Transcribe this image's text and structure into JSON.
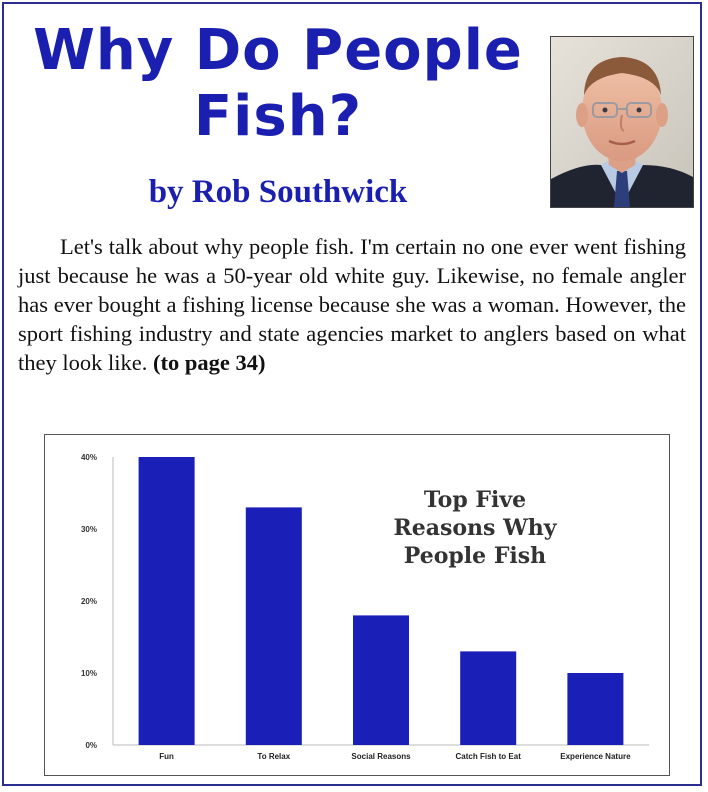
{
  "article": {
    "title_line1": "Why Do People",
    "title_line2": "Fish?",
    "byline": "by Rob Southwick",
    "body": "Let's talk about why people fish.  I'm certain no one ever went fishing just because he was a 50-year old white guy. Likewise, no female angler has ever bought a fishing license because she was a woman.  However, the sport fishing industry and state agencies market to anglers based on what they look like.",
    "continuation": "(to page 34)"
  },
  "colors": {
    "title": "#1a1fb0",
    "bar": "#1a1fb8",
    "frame": "#2a2f8f"
  },
  "chart_data": {
    "type": "bar",
    "title_lines": [
      "Top Five",
      "Reasons Why",
      "People Fish"
    ],
    "categories": [
      "Fun",
      "To Relax",
      "Social Reasons",
      "Catch Fish to Eat",
      "Experience Nature"
    ],
    "values": [
      40,
      33,
      18,
      13,
      10
    ],
    "ytick_labels": [
      "40%",
      "30%",
      "20%",
      "10%",
      "0%"
    ],
    "yticks": [
      40,
      30,
      20,
      10,
      0
    ],
    "ylim": [
      0,
      40
    ],
    "xlabel": "",
    "ylabel": "",
    "grid": false
  }
}
